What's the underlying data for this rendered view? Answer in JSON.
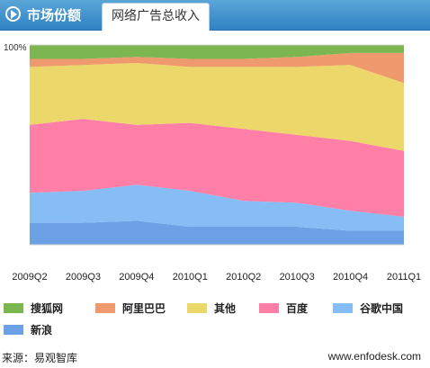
{
  "header": {
    "section_title": "市场份额",
    "tab_label": "网络广告总收入"
  },
  "chart_data": {
    "type": "area",
    "stacked": true,
    "y_top_label": "100%",
    "ylim": [
      0,
      100
    ],
    "categories": [
      "2009Q2",
      "2009Q3",
      "2009Q4",
      "2010Q1",
      "2010Q2",
      "2010Q3",
      "2010Q4",
      "2011Q1"
    ],
    "series": [
      {
        "name": "新浪",
        "color": "#6ca2e5",
        "values": [
          11,
          11,
          12,
          9,
          9,
          9,
          7,
          7
        ]
      },
      {
        "name": "谷歌中国",
        "color": "#86bdf5",
        "values": [
          15,
          16,
          18,
          18,
          13,
          12,
          10,
          7
        ]
      },
      {
        "name": "百度",
        "color": "#ff7fa6",
        "values": [
          34,
          36,
          30,
          34,
          36,
          34,
          35,
          33
        ]
      },
      {
        "name": "其他",
        "color": "#ecd76b",
        "values": [
          29,
          27,
          31,
          28,
          31,
          34,
          38,
          34
        ]
      },
      {
        "name": "阿里巴巴",
        "color": "#ef9a6e",
        "values": [
          4,
          3,
          3,
          4,
          4,
          5,
          6,
          15
        ]
      },
      {
        "name": "搜狐网",
        "color": "#7cb650",
        "values": [
          7,
          7,
          6,
          7,
          7,
          6,
          4,
          4
        ]
      }
    ],
    "legend_order": [
      "搜狐网",
      "阿里巴巴",
      "其他",
      "百度",
      "谷歌中国",
      "新浪"
    ]
  },
  "footer": {
    "source": "来源：易观智库",
    "website": "www.enfodesk.com"
  }
}
